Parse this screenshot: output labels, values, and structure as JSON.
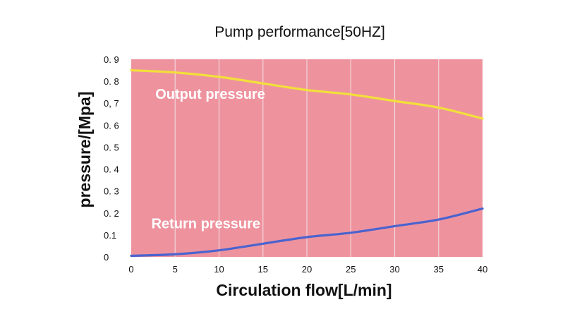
{
  "chart_data": {
    "type": "line",
    "title": "Pump performance[50HZ]",
    "xlabel": "Circulation flow[L/min]",
    "ylabel": "pressure/[Mpa]",
    "xlim": [
      0,
      40
    ],
    "ylim": [
      0,
      0.9
    ],
    "x_ticks": [
      0,
      5,
      10,
      15,
      20,
      25,
      30,
      35,
      40
    ],
    "x_tick_labels": [
      "0",
      "5",
      "10",
      "15",
      "20",
      "25",
      "30",
      "35",
      "40"
    ],
    "y_ticks": [
      0,
      0.1,
      0.2,
      0.3,
      0.4,
      0.5,
      0.6,
      0.7,
      0.8,
      0.9
    ],
    "y_tick_labels": [
      "0",
      "0.1",
      "0. 2",
      "0. 3",
      "0. 4",
      "0. 5",
      "0. 6",
      "0, 7",
      "0. 8",
      "0. 9"
    ],
    "grid": true,
    "background_color": "#ee939e",
    "series": [
      {
        "name": "Output pressure",
        "color": "#f2e03a",
        "x": [
          0,
          5,
          10,
          15,
          20,
          25,
          30,
          35,
          40
        ],
        "values": [
          0.85,
          0.84,
          0.82,
          0.79,
          0.76,
          0.74,
          0.71,
          0.68,
          0.63
        ]
      },
      {
        "name": "Return pressure",
        "color": "#4a63cf",
        "x": [
          0,
          5,
          10,
          15,
          20,
          25,
          30,
          35,
          40
        ],
        "values": [
          0.005,
          0.012,
          0.03,
          0.06,
          0.09,
          0.11,
          0.14,
          0.17,
          0.22
        ]
      }
    ],
    "annotations": [
      {
        "text": "Output pressure",
        "series": "Output pressure",
        "x": 9,
        "y": 0.72
      },
      {
        "text": "Return pressure",
        "series": "Return pressure",
        "x": 8.5,
        "y": 0.13
      }
    ]
  }
}
